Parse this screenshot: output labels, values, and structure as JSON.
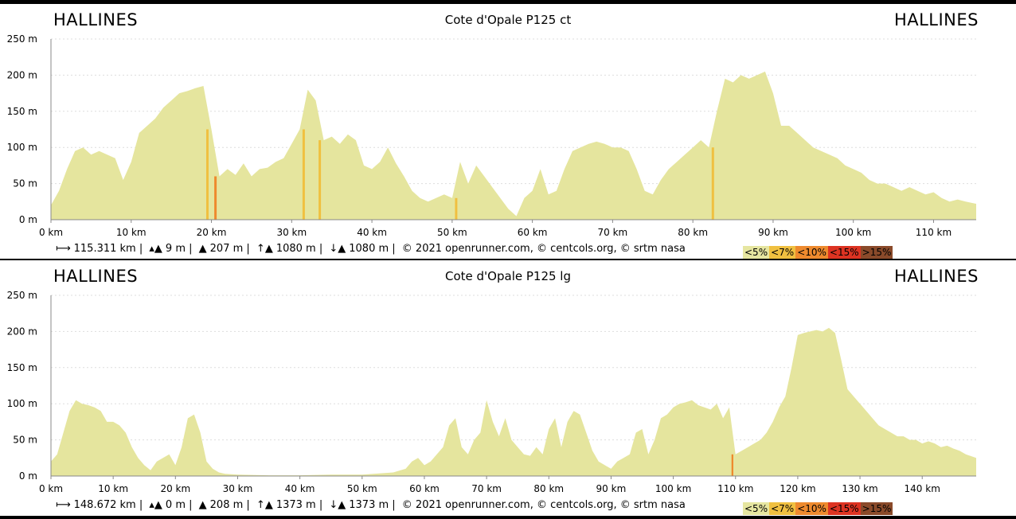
{
  "chart_data": [
    {
      "type": "area",
      "title": "Cote d'Opale P125 ct",
      "start_label": "HALLINES",
      "end_label": "HALLINES",
      "xlim": [
        0,
        115.311
      ],
      "ylim": [
        0,
        250
      ],
      "x_ticks": [
        "0 km",
        "10 km",
        "20 km",
        "30 km",
        "40 km",
        "50 km",
        "60 km",
        "70 km",
        "80 km",
        "90 km",
        "100 km",
        "110 km"
      ],
      "y_ticks": [
        "0 m",
        "50 m",
        "100 m",
        "150 m",
        "200 m",
        "250 m"
      ],
      "grid": true,
      "x": [
        0,
        1,
        2,
        3,
        4,
        5,
        6,
        7,
        8,
        9,
        10,
        11,
        12,
        13,
        14,
        15,
        16,
        17,
        18,
        19,
        20,
        21,
        22,
        23,
        24,
        25,
        26,
        27,
        28,
        29,
        30,
        31,
        32,
        33,
        34,
        35,
        36,
        37,
        38,
        39,
        40,
        41,
        42,
        43,
        44,
        45,
        46,
        47,
        48,
        49,
        50,
        51,
        52,
        53,
        54,
        55,
        56,
        57,
        58,
        59,
        60,
        61,
        62,
        63,
        64,
        65,
        66,
        67,
        68,
        69,
        70,
        71,
        72,
        73,
        74,
        75,
        76,
        77,
        78,
        79,
        80,
        81,
        82,
        83,
        84,
        85,
        86,
        87,
        88,
        89,
        90,
        91,
        92,
        93,
        94,
        95,
        96,
        97,
        98,
        99,
        100,
        101,
        102,
        103,
        104,
        105,
        106,
        107,
        108,
        109,
        110,
        111,
        112,
        113,
        114,
        115.311
      ],
      "y": [
        20,
        40,
        70,
        95,
        100,
        90,
        95,
        90,
        85,
        55,
        80,
        120,
        130,
        140,
        155,
        165,
        175,
        178,
        182,
        185,
        125,
        60,
        70,
        62,
        78,
        60,
        70,
        72,
        80,
        85,
        105,
        125,
        180,
        165,
        110,
        115,
        105,
        118,
        110,
        75,
        70,
        80,
        100,
        78,
        60,
        40,
        30,
        25,
        30,
        35,
        30,
        80,
        50,
        75,
        60,
        45,
        30,
        15,
        5,
        30,
        40,
        70,
        35,
        40,
        70,
        95,
        100,
        105,
        108,
        105,
        100,
        100,
        95,
        70,
        40,
        35,
        55,
        70,
        80,
        90,
        100,
        110,
        100,
        150,
        195,
        190,
        200,
        195,
        200,
        205,
        175,
        130,
        130,
        120,
        110,
        100,
        95,
        90,
        85,
        75,
        70,
        65,
        55,
        50,
        50,
        45,
        40,
        45,
        40,
        35,
        38,
        30,
        25,
        28,
        25,
        22
      ]
    },
    {
      "type": "area",
      "title": "Cote d'Opale P125 lg",
      "start_label": "HALLINES",
      "end_label": "HALLINES",
      "xlim": [
        0,
        148.672
      ],
      "ylim": [
        0,
        250
      ],
      "x_ticks": [
        "0 km",
        "10 km",
        "20 km",
        "30 km",
        "40 km",
        "50 km",
        "60 km",
        "70 km",
        "80 km",
        "90 km",
        "100 km",
        "110 km",
        "120 km",
        "130 km",
        "140 km"
      ],
      "y_ticks": [
        "0 m",
        "50 m",
        "100 m",
        "150 m",
        "200 m",
        "250 m"
      ],
      "grid": true,
      "x": [
        0,
        1,
        2,
        3,
        4,
        5,
        6,
        7,
        8,
        9,
        10,
        11,
        12,
        13,
        14,
        15,
        16,
        17,
        18,
        19,
        20,
        21,
        22,
        23,
        24,
        25,
        26,
        27,
        28,
        30,
        35,
        40,
        45,
        50,
        55,
        57,
        58,
        59,
        60,
        61,
        62,
        63,
        64,
        65,
        66,
        67,
        68,
        69,
        70,
        71,
        72,
        73,
        74,
        75,
        76,
        77,
        78,
        79,
        80,
        81,
        82,
        83,
        84,
        85,
        86,
        87,
        88,
        89,
        90,
        91,
        92,
        93,
        94,
        95,
        96,
        97,
        98,
        99,
        100,
        101,
        102,
        103,
        104,
        105,
        106,
        107,
        108,
        109,
        110,
        111,
        112,
        113,
        114,
        115,
        116,
        117,
        118,
        119,
        120,
        121,
        122,
        123,
        124,
        125,
        126,
        127,
        128,
        129,
        130,
        131,
        132,
        133,
        134,
        135,
        136,
        137,
        138,
        139,
        140,
        141,
        142,
        143,
        144,
        145,
        146,
        147,
        148.672
      ],
      "y": [
        20,
        30,
        60,
        90,
        105,
        100,
        98,
        95,
        90,
        75,
        75,
        70,
        60,
        40,
        25,
        15,
        8,
        20,
        25,
        30,
        15,
        40,
        80,
        85,
        60,
        20,
        10,
        5,
        3,
        2,
        1,
        1,
        2,
        2,
        5,
        10,
        20,
        25,
        15,
        20,
        30,
        40,
        70,
        80,
        40,
        30,
        50,
        60,
        105,
        75,
        55,
        80,
        50,
        40,
        30,
        28,
        40,
        30,
        65,
        80,
        40,
        75,
        90,
        85,
        60,
        35,
        20,
        15,
        10,
        20,
        25,
        30,
        60,
        65,
        30,
        50,
        80,
        85,
        95,
        100,
        102,
        105,
        98,
        95,
        92,
        100,
        80,
        95,
        30,
        35,
        40,
        45,
        50,
        60,
        75,
        95,
        110,
        150,
        195,
        198,
        200,
        202,
        200,
        205,
        198,
        160,
        120,
        110,
        100,
        90,
        80,
        70,
        65,
        60,
        55,
        55,
        50,
        50,
        45,
        48,
        45,
        40,
        42,
        38,
        35,
        30,
        25
      ]
    }
  ],
  "panels": [
    {
      "start_label": "HALLINES",
      "end_label": "HALLINES",
      "title": "Cote d'Opale P125 ct",
      "stats": {
        "distance": "115.311 km |",
        "min_alt": "9 m |",
        "max_alt": "207 m |",
        "ascent": "1080 m |",
        "descent": "1080 m |",
        "credits": "© 2021 openrunner.com, © centcols.org, © srtm nasa"
      }
    },
    {
      "start_label": "HALLINES",
      "end_label": "HALLINES",
      "title": "Cote d'Opale P125 lg",
      "stats": {
        "distance": "148.672 km |",
        "min_alt": "0 m |",
        "max_alt": "208 m |",
        "ascent": "1373 m |",
        "descent": "1373 m |",
        "credits": "© 2021 openrunner.com, © centcols.org, © srtm nasa"
      }
    }
  ],
  "legend": [
    {
      "label": "<5%",
      "color": "#e6e6a0"
    },
    {
      "label": "<7%",
      "color": "#f0c040"
    },
    {
      "label": "<10%",
      "color": "#ee8a2e"
    },
    {
      "label": "<15%",
      "color": "#dd3322"
    },
    {
      "label": ">15%",
      "color": "#8a4a2a"
    }
  ],
  "colors": {
    "area_fill": "#e5e59e",
    "grid": "#dddddd",
    "axis": "#888888"
  }
}
